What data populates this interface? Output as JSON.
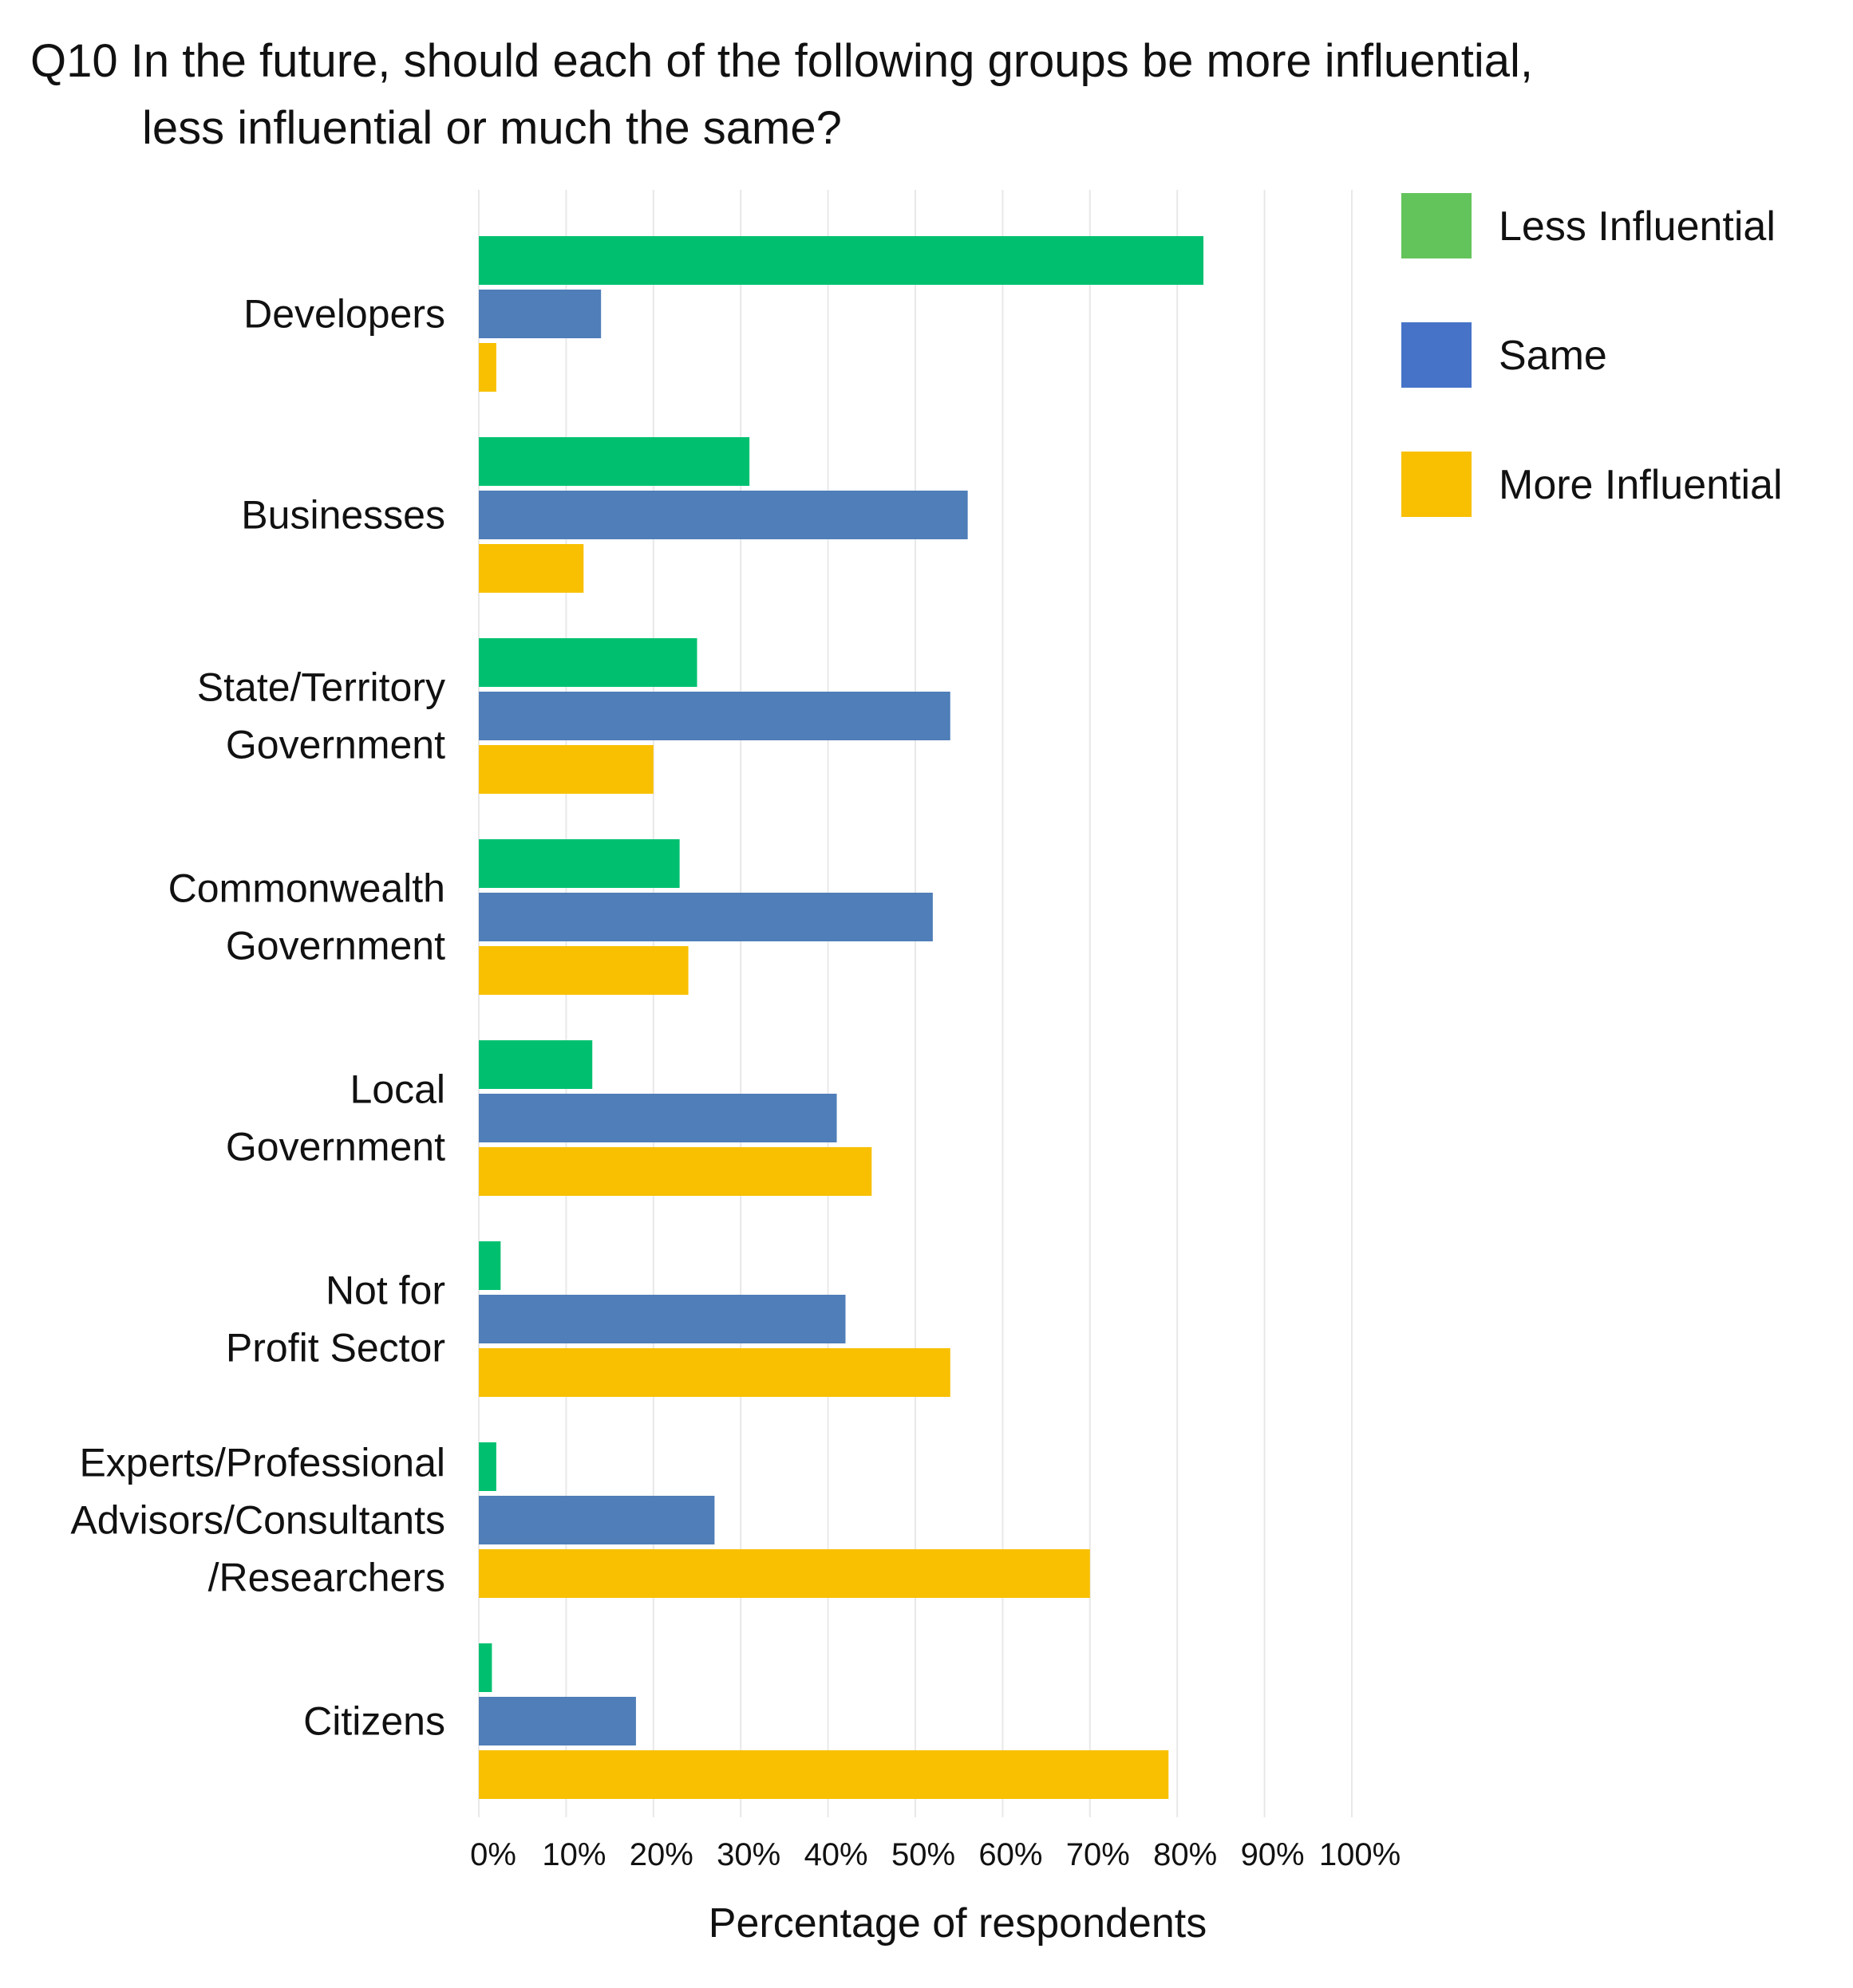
{
  "chart_data": {
    "type": "bar",
    "orientation": "horizontal",
    "title_lines": [
      "Q10 In the future, should each of the following groups be more influential,",
      "less influential or much the same?"
    ],
    "categories": [
      [
        "Developers"
      ],
      [
        "Businesses"
      ],
      [
        "State/Territory",
        "Government"
      ],
      [
        "Commonwealth",
        "Government"
      ],
      [
        "Local",
        "Government"
      ],
      [
        "Not for",
        "Profit Sector"
      ],
      [
        "Experts/Professional",
        "Advisors/Consultants",
        "/Researchers"
      ],
      [
        "Citizens"
      ]
    ],
    "series": [
      {
        "name": "Less Influential",
        "color": "#00C070",
        "legend_color": "#63C45B",
        "values": [
          83,
          31,
          25,
          23,
          13,
          2.5,
          2,
          1.5
        ]
      },
      {
        "name": "Same",
        "color": "#4F7EB8",
        "legend_color": "#4673C8",
        "values": [
          14,
          56,
          54,
          52,
          41,
          42,
          27,
          18
        ]
      },
      {
        "name": "More Influential",
        "color": "#F8C000",
        "legend_color": "#F8C000",
        "values": [
          2,
          12,
          20,
          24,
          45,
          54,
          70,
          79
        ]
      }
    ],
    "x_ticks": [
      "0%",
      "10%",
      "20%",
      "30%",
      "40%",
      "50%",
      "60%",
      "70%",
      "80%",
      "90%",
      "100%"
    ],
    "xlim": [
      0,
      100
    ],
    "xlabel": "Percentage of respondents",
    "ylabel": "",
    "grid": true,
    "legend_position": "top-right"
  }
}
